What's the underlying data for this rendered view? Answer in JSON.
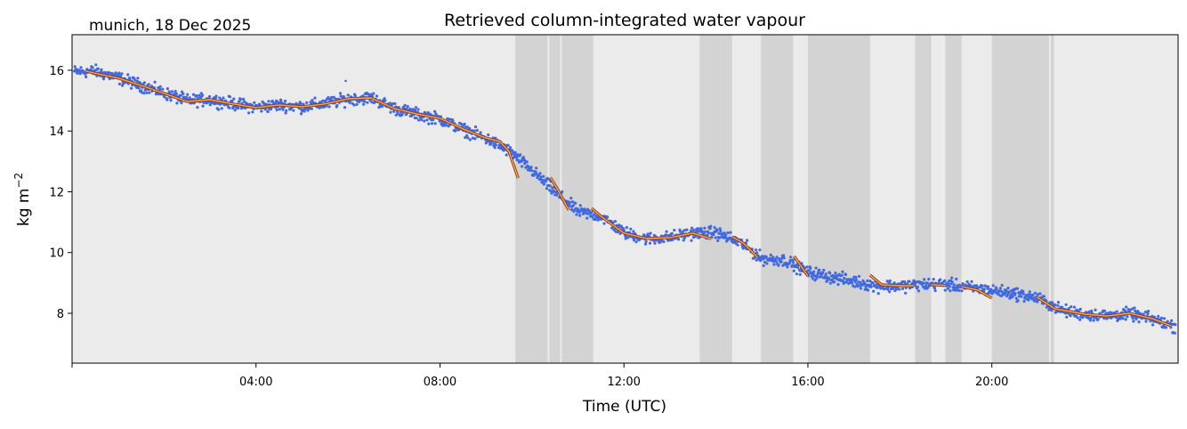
{
  "chart_data": {
    "type": "scatter",
    "title": "Retrieved column-integrated water vapour",
    "subtitle": "munich, 18 Dec 2025",
    "xlabel": "Time (UTC)",
    "ylabel": "kg m",
    "ylabel_superscript": "−2",
    "xlim_hours": [
      0,
      24.05
    ],
    "ylim": [
      6.36,
      17.17
    ],
    "x_ticks": [
      {
        "h": 0,
        "label": ""
      },
      {
        "h": 4,
        "label": "04:00"
      },
      {
        "h": 8,
        "label": "08:00"
      },
      {
        "h": 12,
        "label": "12:00"
      },
      {
        "h": 16,
        "label": "16:00"
      },
      {
        "h": 20,
        "label": "20:00"
      }
    ],
    "y_ticks": [
      8,
      10,
      12,
      14,
      16
    ],
    "grid": false,
    "colors": {
      "background": "#ebebeb",
      "shaded": "#d3d3d3",
      "retrieved": "#4169e1",
      "smoothed_inner": "#ffa54f",
      "smoothed_outline": "#8b3a1a"
    },
    "shaded_intervals_hours": [
      [
        9.64,
        10.34
      ],
      [
        10.38,
        10.61
      ],
      [
        10.65,
        11.33
      ],
      [
        13.65,
        14.35
      ],
      [
        14.98,
        15.68
      ],
      [
        16.0,
        17.35
      ],
      [
        18.33,
        18.68
      ],
      [
        18.99,
        19.34
      ],
      [
        20.0,
        21.24
      ],
      [
        21.28,
        21.35
      ]
    ],
    "retrieved_series": {
      "time_hours": [
        0,
        0.5,
        1,
        1.5,
        2,
        2.5,
        3,
        3.5,
        4,
        4.5,
        5,
        5.5,
        6,
        6.5,
        7,
        7.5,
        8,
        8.5,
        9,
        9.5,
        10,
        10.5,
        11,
        11.5,
        12,
        12.5,
        13,
        13.5,
        14,
        14.5,
        15,
        15.5,
        16,
        16.5,
        17,
        17.5,
        18,
        18.5,
        19,
        19.5,
        20,
        20.5,
        21,
        21.5,
        22,
        22.5,
        23,
        23.5,
        24
      ],
      "values": [
        15.95,
        15.97,
        15.75,
        15.5,
        15.25,
        15.0,
        15.03,
        14.9,
        14.78,
        14.86,
        14.8,
        14.9,
        15.05,
        15.1,
        14.75,
        14.55,
        14.4,
        14.05,
        13.75,
        13.35,
        12.7,
        12.0,
        11.35,
        11.2,
        10.65,
        10.45,
        10.5,
        10.65,
        10.65,
        10.35,
        9.8,
        9.75,
        9.35,
        9.2,
        9.05,
        8.9,
        8.9,
        8.95,
        8.95,
        8.85,
        8.75,
        8.65,
        8.5,
        8.1,
        7.97,
        7.92,
        7.98,
        7.8,
        7.55
      ],
      "spread": 0.15
    },
    "smoothed_segments": [
      [
        [
          0.3,
          15.97
        ],
        [
          1,
          15.74
        ],
        [
          1.5,
          15.5
        ],
        [
          2,
          15.24
        ],
        [
          2.5,
          14.97
        ],
        [
          3,
          15.03
        ],
        [
          3.5,
          14.89
        ],
        [
          4,
          14.77
        ],
        [
          4.5,
          14.86
        ],
        [
          5,
          14.8
        ],
        [
          5.5,
          14.89
        ],
        [
          6,
          15.06
        ],
        [
          6.5,
          15.09
        ],
        [
          7,
          14.74
        ],
        [
          7.5,
          14.56
        ],
        [
          8,
          14.42
        ],
        [
          8.5,
          14.07
        ],
        [
          9,
          13.77
        ],
        [
          9.3,
          13.66
        ],
        [
          9.5,
          13.33
        ],
        [
          9.7,
          12.45
        ]
      ],
      [
        [
          10.4,
          12.47
        ],
        [
          10.55,
          12.1
        ],
        [
          10.8,
          11.4
        ]
      ],
      [
        [
          11.3,
          11.46
        ],
        [
          11.5,
          11.19
        ],
        [
          12,
          10.64
        ],
        [
          12.5,
          10.46
        ],
        [
          13,
          10.49
        ],
        [
          13.5,
          10.64
        ],
        [
          13.9,
          10.45
        ]
      ],
      [
        [
          14.35,
          10.52
        ],
        [
          14.6,
          10.31
        ],
        [
          14.9,
          9.85
        ]
      ],
      [
        [
          15.7,
          9.88
        ],
        [
          16,
          9.23
        ]
      ],
      [
        [
          17.35,
          9.26
        ],
        [
          17.6,
          8.94
        ],
        [
          18,
          8.91
        ],
        [
          18.3,
          8.91
        ]
      ],
      [
        [
          18.68,
          8.94
        ],
        [
          18.99,
          8.92
        ]
      ],
      [
        [
          19.34,
          8.88
        ],
        [
          19.7,
          8.76
        ],
        [
          20,
          8.5
        ]
      ],
      [
        [
          20.98,
          8.53
        ],
        [
          21.37,
          8.15
        ],
        [
          22.03,
          7.97
        ],
        [
          22.5,
          7.91
        ],
        [
          23,
          8.0
        ],
        [
          23.5,
          7.82
        ],
        [
          23.9,
          7.59
        ]
      ]
    ]
  }
}
